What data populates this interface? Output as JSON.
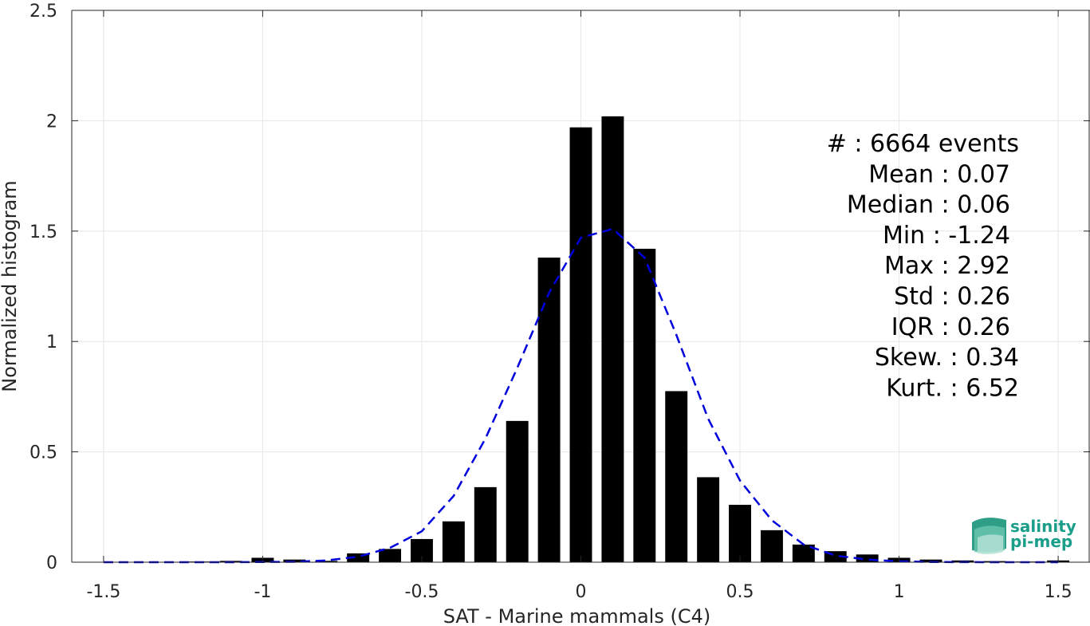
{
  "chart_data": {
    "type": "bar",
    "xlabel": "SAT - Marine mammals (C4)",
    "ylabel": "Normalized histogram",
    "xlim": [
      -1.6,
      1.6
    ],
    "ylim": [
      0,
      2.5
    ],
    "xticks": [
      -1.5,
      -1,
      -0.5,
      0,
      0.5,
      1,
      1.5
    ],
    "xtick_labels": [
      "-1.5",
      "-1",
      "-0.5",
      "0",
      "0.5",
      "1",
      "1.5"
    ],
    "yticks": [
      0,
      0.5,
      1,
      1.5,
      2,
      2.5
    ],
    "ytick_labels": [
      "0",
      "0.5",
      "1",
      "1.5",
      "2",
      "2.5"
    ],
    "grid": true,
    "bar_color": "#000000",
    "bar_width": 0.07,
    "bars": {
      "x": [
        -1.5,
        -1.4,
        -1.3,
        -1.2,
        -1.1,
        -1.0,
        -0.9,
        -0.8,
        -0.7,
        -0.6,
        -0.5,
        -0.4,
        -0.3,
        -0.2,
        -0.1,
        0.0,
        0.1,
        0.2,
        0.3,
        0.4,
        0.5,
        0.6,
        0.7,
        0.8,
        0.9,
        1.0,
        1.1,
        1.2,
        1.3,
        1.4,
        1.5
      ],
      "values": [
        0.0,
        0.0,
        0.0,
        0.003,
        0.006,
        0.02,
        0.012,
        0.006,
        0.04,
        0.06,
        0.105,
        0.185,
        0.34,
        0.64,
        1.38,
        1.97,
        2.02,
        1.42,
        0.775,
        0.385,
        0.26,
        0.145,
        0.08,
        0.05,
        0.035,
        0.02,
        0.012,
        0.008,
        0.005,
        0.003,
        0.008
      ]
    },
    "fit_curve": {
      "style": "dashed",
      "color": "#0000dd",
      "x": [
        -1.5,
        -1.3,
        -1.1,
        -1.0,
        -0.9,
        -0.8,
        -0.7,
        -0.6,
        -0.5,
        -0.4,
        -0.3,
        -0.2,
        -0.1,
        0.0,
        0.05,
        0.1,
        0.2,
        0.3,
        0.4,
        0.5,
        0.6,
        0.7,
        0.8,
        0.9,
        1.0,
        1.1,
        1.3,
        1.5
      ],
      "y": [
        0.0,
        0.0,
        0.0,
        0.001,
        0.002,
        0.008,
        0.025,
        0.065,
        0.14,
        0.3,
        0.56,
        0.88,
        1.22,
        1.47,
        1.49,
        1.51,
        1.38,
        1.03,
        0.65,
        0.37,
        0.19,
        0.08,
        0.03,
        0.012,
        0.004,
        0.001,
        0.0,
        0.0
      ]
    },
    "stats": [
      {
        "label": "#  : 6664 events"
      },
      {
        "label": "Mean : 0.07"
      },
      {
        "label": "Median : 0.06"
      },
      {
        "label": "Min : -1.24"
      },
      {
        "label": "Max : 2.92"
      },
      {
        "label": "Std : 0.26"
      },
      {
        "label": "IQR : 0.26"
      },
      {
        "label": "Skew. : 0.34"
      },
      {
        "label": "Kurt. : 6.52"
      }
    ]
  },
  "logo": {
    "line1": "salinity",
    "line2": "pi-mep",
    "color": "#1a9e8a"
  }
}
